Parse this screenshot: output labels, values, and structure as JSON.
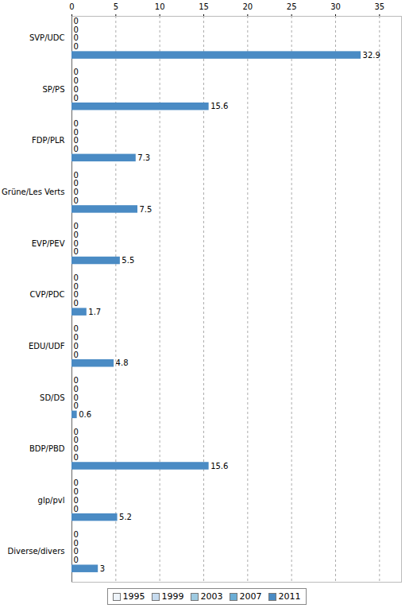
{
  "chart_data": {
    "type": "bar",
    "orientation": "horizontal",
    "data_labels": true,
    "grid": true,
    "legend": "bottom",
    "categories": [
      "SVP/UDC",
      "SP/PS",
      "FDP/PLR",
      "Grüne/Les Verts",
      "EVP/PEV",
      "CVP/PDC",
      "EDU/UDF",
      "SD/DS",
      "BDP/PBD",
      "glp/pvl",
      "Diverse/divers"
    ],
    "series": [
      {
        "name": "1995",
        "color": "#eef4fa",
        "values": [
          0,
          0,
          0,
          0,
          0,
          0,
          0,
          0,
          0,
          0,
          0
        ]
      },
      {
        "name": "1999",
        "color": "#c6dbef",
        "values": [
          0,
          0,
          0,
          0,
          0,
          0,
          0,
          0,
          0,
          0,
          0
        ]
      },
      {
        "name": "2003",
        "color": "#9ecae1",
        "values": [
          0,
          0,
          0,
          0,
          0,
          0,
          0,
          0,
          0,
          0,
          0
        ]
      },
      {
        "name": "2007",
        "color": "#6baed6",
        "values": [
          0,
          0,
          0,
          0,
          0,
          0,
          0,
          0,
          0,
          0,
          0
        ]
      },
      {
        "name": "2011",
        "color": "#4a8bc4",
        "values": [
          32.9,
          15.6,
          7.3,
          7.5,
          5.5,
          1.7,
          4.8,
          0.6,
          15.6,
          5.2,
          3
        ]
      }
    ],
    "xlim": [
      0,
      37.5
    ],
    "xticks": [
      0,
      5,
      10,
      15,
      20,
      25,
      30,
      35
    ]
  }
}
